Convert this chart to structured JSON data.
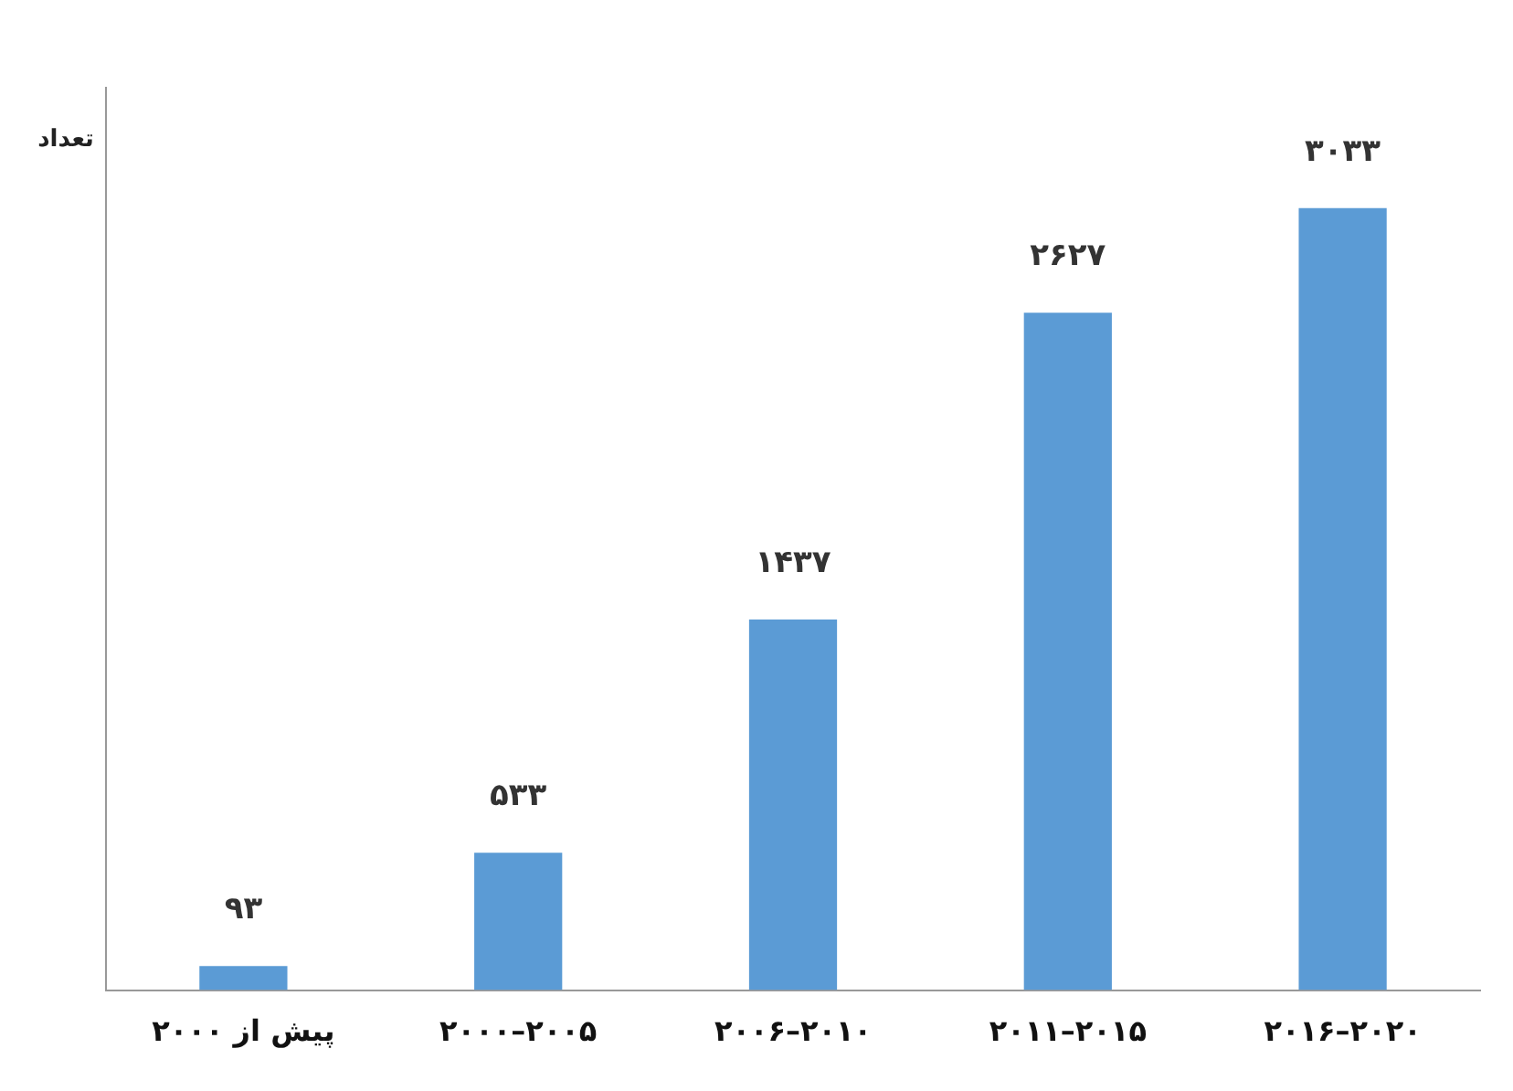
{
  "chart_data": {
    "type": "bar",
    "ylabel": "تعداد",
    "categories": [
      "پیش از ۲۰۰۰",
      "۲۰۰۰–۲۰۰۵",
      "۲۰۰۶–۲۰۱۰",
      "۲۰۱۱–۲۰۱۵",
      "۲۰۱۶–۲۰۲۰"
    ],
    "values": [
      93,
      533,
      1437,
      2627,
      3033
    ],
    "value_labels": [
      "۹۳",
      "۵۳۳",
      "۱۴۳۷",
      "۲۶۲۷",
      "۳۰۳۳"
    ],
    "color": "#5b9bd5",
    "grid": false,
    "legend": false,
    "tick_labels": "x"
  }
}
